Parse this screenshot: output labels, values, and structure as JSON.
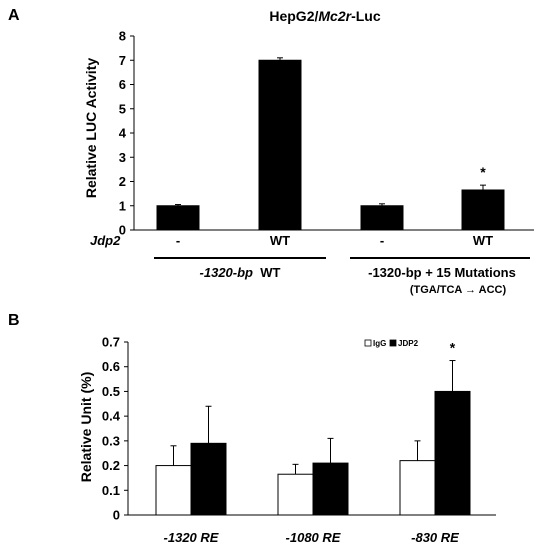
{
  "chart_data": [
    {
      "panel": "A",
      "type": "bar",
      "title_prefix": "HepG2/",
      "title_gene": "Mc2r",
      "title_suffix": "-Luc",
      "ylabel": "Relative LUC Activity",
      "ylim": [
        0,
        8
      ],
      "yticks": [
        "0",
        "1",
        "2",
        "3",
        "4",
        "5",
        "6",
        "7",
        "8"
      ],
      "values": [
        1.0,
        7.0,
        1.0,
        1.65
      ],
      "errors": [
        0.05,
        0.1,
        0.08,
        0.2
      ],
      "significance": [
        "",
        "",
        "",
        "*"
      ],
      "row_label": "Jdp2",
      "row_values": [
        "-",
        "WT",
        "-",
        "WT"
      ],
      "group_labels": [
        {
          "italic": "-1320-bp",
          "plain": "WT"
        },
        {
          "plain": "-1320-bp  + 15 Mutations"
        }
      ],
      "group2_note": "(TGA/TCA → ACC)",
      "bar_color": "#000000"
    },
    {
      "panel": "B",
      "type": "bar",
      "ylabel": "Relative Unit (%)",
      "ylim": [
        0,
        0.7
      ],
      "yticks": [
        "0",
        "0.1",
        "0.2",
        "0.3",
        "0.4",
        "0.5",
        "0.6",
        "0.7"
      ],
      "categories": [
        "-1320  RE",
        "-1080  RE",
        "-830  RE"
      ],
      "series": [
        {
          "name": "IgG",
          "values": [
            0.2,
            0.165,
            0.22
          ],
          "errors": [
            0.08,
            0.04,
            0.08
          ],
          "color": "#ffffff"
        },
        {
          "name": "JDP2",
          "values": [
            0.29,
            0.21,
            0.5
          ],
          "errors": [
            0.15,
            0.1,
            0.125
          ],
          "color": "#000000"
        }
      ],
      "significance": [
        "",
        "",
        "*"
      ],
      "legend_position": "top-right"
    }
  ]
}
